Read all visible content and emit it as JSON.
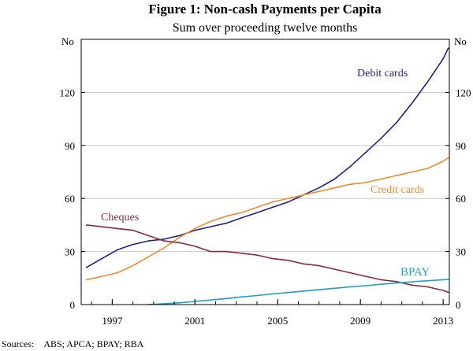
{
  "chart_data": {
    "type": "line",
    "title": "Figure 1: Non-cash Payments per Capita",
    "subtitle": "Sum over proceeding twelve months",
    "ylabel_left": "No",
    "ylabel_right": "No",
    "ylim": [
      0,
      150
    ],
    "yticks": [
      0,
      30,
      60,
      90,
      120
    ],
    "xlim": [
      1995.5,
      2013.3
    ],
    "xticks": [
      1997,
      2001,
      2005,
      2009,
      2013
    ],
    "grid": true,
    "source": "Sources:    ABS; APCA; BPAY; RBA",
    "series": [
      {
        "name": "Debit cards",
        "color": "#1f1f8a",
        "x": [
          1995.75,
          1996.5,
          1997.25,
          1998.0,
          1998.75,
          1999.5,
          2000.25,
          2001.0,
          2001.75,
          2002.5,
          2003.25,
          2004.0,
          2004.75,
          2005.5,
          2006.25,
          2007.0,
          2007.75,
          2008.5,
          2009.25,
          2010.0,
          2010.75,
          2011.5,
          2012.25,
          2013.0,
          2013.25
        ],
        "values": [
          21,
          26,
          31,
          34,
          36,
          37,
          39,
          42,
          44,
          46,
          49,
          52,
          55,
          58,
          62,
          66,
          71,
          78,
          86,
          94,
          103,
          114,
          126,
          139,
          145
        ]
      },
      {
        "name": "Credit cards",
        "color": "#f28a32",
        "x": [
          1995.75,
          1996.5,
          1997.25,
          1998.0,
          1998.75,
          1999.5,
          2000.25,
          2001.0,
          2001.75,
          2002.5,
          2003.25,
          2004.0,
          2004.75,
          2005.5,
          2006.25,
          2007.0,
          2007.75,
          2008.5,
          2009.25,
          2010.0,
          2010.75,
          2011.5,
          2012.25,
          2013.0,
          2013.25
        ],
        "values": [
          14,
          16,
          18,
          22,
          27,
          32,
          38,
          43,
          47,
          50,
          52,
          55,
          58,
          60,
          62,
          64,
          66,
          68,
          69,
          71,
          73,
          75,
          77,
          81,
          83
        ]
      },
      {
        "name": "Cheques",
        "color": "#8b2a33",
        "x": [
          1995.75,
          1996.5,
          1997.25,
          1998.0,
          1998.75,
          1999.5,
          2000.25,
          2001.0,
          2001.75,
          2002.5,
          2003.25,
          2004.0,
          2004.75,
          2005.5,
          2006.25,
          2007.0,
          2007.75,
          2008.5,
          2009.25,
          2010.0,
          2010.75,
          2011.5,
          2012.25,
          2013.0,
          2013.25
        ],
        "values": [
          45,
          44,
          43,
          42,
          39,
          36,
          35,
          33,
          30,
          30,
          29,
          28,
          26,
          25,
          23,
          22,
          20,
          18,
          16,
          14,
          13,
          11,
          10,
          8,
          7
        ]
      },
      {
        "name": "BPAY",
        "color": "#1f9dc9",
        "x": [
          1998.75,
          1999.5,
          2000.25,
          2001.0,
          2001.75,
          2002.5,
          2003.25,
          2004.0,
          2004.75,
          2005.5,
          2006.25,
          2007.0,
          2007.75,
          2008.5,
          2009.25,
          2010.0,
          2010.75,
          2011.5,
          2012.25,
          2013.0,
          2013.25
        ],
        "values": [
          0,
          0.5,
          1,
          1.8,
          2.6,
          3.4,
          4.3,
          5.1,
          6,
          6.8,
          7.6,
          8.4,
          9.2,
          10,
          10.7,
          11.5,
          12.2,
          12.9,
          13.5,
          14,
          14.2
        ]
      }
    ]
  }
}
